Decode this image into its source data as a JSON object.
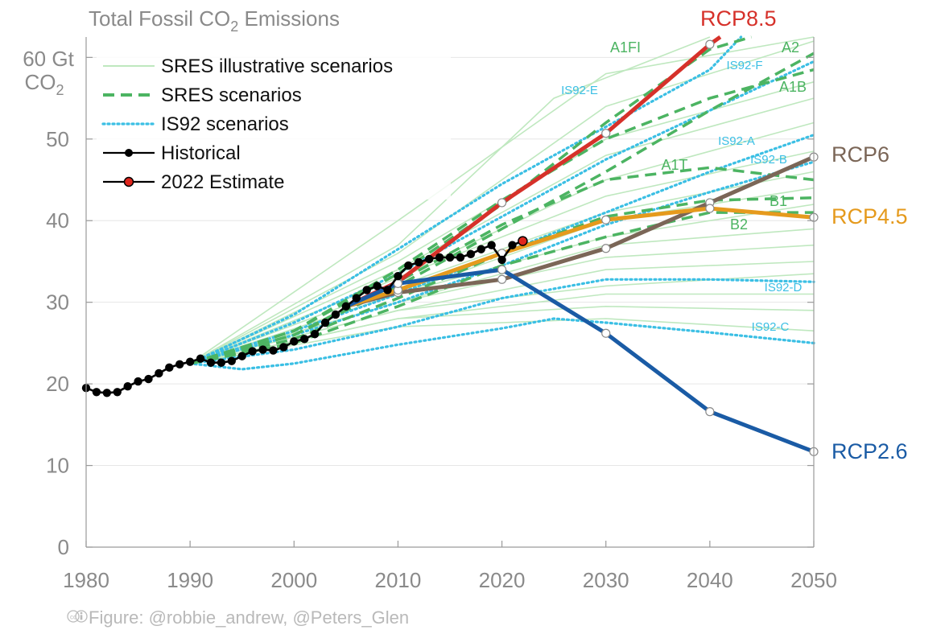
{
  "chart_data": {
    "type": "line",
    "title": "Total Fossil CO",
    "title_sub": "2",
    "title_tail": " Emissions",
    "ylabel_line1": "60 Gt",
    "ylabel_line2": "CO",
    "ylabel_line2_sub": "2",
    "xlim": [
      1980,
      2050
    ],
    "ylim": [
      0,
      62.5
    ],
    "x_ticks": [
      1980,
      1990,
      2000,
      2010,
      2020,
      2030,
      2040,
      2050
    ],
    "y_ticks": [
      0,
      10,
      20,
      30,
      40,
      50
    ],
    "grid": true,
    "legend_position": "top-left",
    "legend": [
      {
        "label": "SRES illustrative scenarios",
        "style": "sres_illus"
      },
      {
        "label": "SRES scenarios",
        "style": "sres"
      },
      {
        "label": "IS92 scenarios",
        "style": "is92"
      },
      {
        "label": "Historical",
        "style": "hist"
      },
      {
        "label": "2022 Estimate",
        "style": "est"
      }
    ],
    "colors": {
      "sres_illus": "#bfe8bf",
      "sres": "#4cb462",
      "is92": "#3bbfe4",
      "hist": "#000000",
      "est": "#e0261d",
      "rcp85": "#d6312a",
      "rcp6": "#7b6657",
      "rcp45": "#e59a1d",
      "rcp26": "#1a5ba5",
      "axis_text": "#8a8a8a"
    },
    "historical": {
      "x": [
        1980,
        1981,
        1982,
        1983,
        1984,
        1985,
        1986,
        1987,
        1988,
        1989,
        1990,
        1991,
        1992,
        1993,
        1994,
        1995,
        1996,
        1997,
        1998,
        1999,
        2000,
        2001,
        2002,
        2003,
        2004,
        2005,
        2006,
        2007,
        2008,
        2009,
        2010,
        2011,
        2012,
        2013,
        2014,
        2015,
        2016,
        2017,
        2018,
        2019,
        2020,
        2021
      ],
      "y": [
        19.5,
        19.0,
        18.9,
        19.0,
        19.7,
        20.3,
        20.6,
        21.3,
        22.0,
        22.4,
        22.7,
        23.1,
        22.6,
        22.6,
        22.8,
        23.4,
        24.0,
        24.2,
        24.1,
        24.5,
        25.2,
        25.5,
        26.1,
        27.5,
        28.5,
        29.5,
        30.5,
        31.5,
        32.0,
        31.5,
        33.2,
        34.5,
        34.9,
        35.3,
        35.5,
        35.5,
        35.5,
        35.9,
        36.5,
        37.0,
        35.2,
        37.0
      ]
    },
    "estimate_2022": {
      "x": 2022,
      "y": 37.5
    },
    "rcp": [
      {
        "name": "RCP8.5",
        "key": "rcp85",
        "x": [
          2005,
          2010,
          2020,
          2030,
          2040,
          2041
        ],
        "y": [
          29.5,
          32.5,
          42.2,
          50.7,
          61.6,
          62.5
        ]
      },
      {
        "name": "RCP6",
        "key": "rcp6",
        "x": [
          2005,
          2010,
          2020,
          2030,
          2040,
          2050
        ],
        "y": [
          29.5,
          31.2,
          32.8,
          36.6,
          42.2,
          47.8
        ]
      },
      {
        "name": "RCP4.5",
        "key": "rcp45",
        "x": [
          2005,
          2010,
          2020,
          2030,
          2040,
          2050
        ],
        "y": [
          29.5,
          31.5,
          36.0,
          40.1,
          41.5,
          40.4
        ]
      },
      {
        "name": "RCP2.6",
        "key": "rcp26",
        "x": [
          2005,
          2010,
          2020,
          2030,
          2040,
          2050
        ],
        "y": [
          29.5,
          32.3,
          34.0,
          26.2,
          16.6,
          11.7
        ]
      }
    ],
    "rcp_points": {
      "rcp85": [
        2010,
        2020,
        2030,
        2040
      ],
      "rcp6": [
        2010,
        2020,
        2030,
        2040,
        2050
      ],
      "rcp45": [
        2010,
        2020,
        2030,
        2040,
        2050
      ],
      "rcp26": [
        2010,
        2020,
        2030,
        2040,
        2050
      ]
    },
    "is92": [
      {
        "name": "IS92-E",
        "x": [
          1990,
          2000,
          2010,
          2020,
          2030,
          2040,
          2043
        ],
        "y": [
          22.5,
          28.5,
          36.5,
          44.5,
          51.5,
          58.5,
          62.5
        ]
      },
      {
        "name": "IS92-F",
        "x": [
          1990,
          2000,
          2010,
          2020,
          2030,
          2040,
          2050
        ],
        "y": [
          22.5,
          27.5,
          33.5,
          40.5,
          47.5,
          53.5,
          59.5
        ]
      },
      {
        "name": "IS92-A",
        "x": [
          1990,
          2000,
          2010,
          2020,
          2030,
          2040,
          2050
        ],
        "y": [
          22.5,
          26.5,
          31.0,
          36.0,
          41.0,
          46.0,
          50.5
        ]
      },
      {
        "name": "IS92-B",
        "x": [
          1990,
          2000,
          2010,
          2020,
          2030,
          2040,
          2050
        ],
        "y": [
          22.5,
          26.0,
          30.0,
          34.5,
          39.5,
          43.5,
          47.2
        ]
      },
      {
        "name": "IS92-D",
        "x": [
          1990,
          2000,
          2010,
          2020,
          2030,
          2040,
          2050
        ],
        "y": [
          22.5,
          24.2,
          27.0,
          30.5,
          32.8,
          32.8,
          32.5
        ]
      },
      {
        "name": "IS92-C",
        "x": [
          1990,
          1995,
          2000,
          2010,
          2020,
          2025,
          2030,
          2040,
          2050
        ],
        "y": [
          22.5,
          21.8,
          22.5,
          24.8,
          26.8,
          28.0,
          27.5,
          26.3,
          25.0
        ]
      }
    ],
    "sres": [
      {
        "name": "A1FI",
        "x": [
          1990,
          2000,
          2010,
          2020,
          2030,
          2040,
          2044
        ],
        "y": [
          22.5,
          26.5,
          33.5,
          42.0,
          52.0,
          61.0,
          62.5
        ]
      },
      {
        "name": "A2",
        "x": [
          1990,
          2000,
          2010,
          2020,
          2030,
          2040,
          2050
        ],
        "y": [
          22.5,
          26.0,
          32.0,
          39.0,
          46.0,
          53.5,
          60.5
        ]
      },
      {
        "name": "A1B",
        "x": [
          1990,
          2000,
          2010,
          2020,
          2030,
          2040,
          2050
        ],
        "y": [
          22.5,
          26.5,
          34.0,
          42.5,
          50.0,
          55.0,
          58.5
        ]
      },
      {
        "name": "A1T",
        "x": [
          1990,
          2000,
          2010,
          2020,
          2030,
          2040,
          2050
        ],
        "y": [
          22.5,
          26.0,
          32.5,
          39.5,
          45.0,
          46.5,
          45.0
        ]
      },
      {
        "name": "B1",
        "x": [
          1990,
          2000,
          2010,
          2020,
          2030,
          2040,
          2050
        ],
        "y": [
          22.5,
          25.5,
          30.5,
          36.0,
          40.5,
          42.5,
          42.8
        ]
      },
      {
        "name": "B2",
        "x": [
          1990,
          2000,
          2010,
          2020,
          2030,
          2040,
          2050
        ],
        "y": [
          22.5,
          25.0,
          29.5,
          34.5,
          38.0,
          41.0,
          41.0
        ]
      }
    ],
    "sres_illustrative": [
      {
        "x": [
          1990,
          2010,
          2030,
          2050
        ],
        "y": [
          22.5,
          40.0,
          58.0,
          62.5
        ]
      },
      {
        "x": [
          1990,
          2010,
          2025,
          2040
        ],
        "y": [
          22.5,
          37.0,
          55.0,
          62.5
        ]
      },
      {
        "x": [
          1990,
          2010,
          2030,
          2050
        ],
        "y": [
          22.5,
          36.0,
          54.0,
          62.0
        ]
      },
      {
        "x": [
          1990,
          2010,
          2030,
          2050
        ],
        "y": [
          22.5,
          35.0,
          50.0,
          57.0
        ]
      },
      {
        "x": [
          1990,
          2010,
          2030,
          2050
        ],
        "y": [
          22.5,
          34.0,
          48.0,
          55.0
        ]
      },
      {
        "x": [
          1990,
          2010,
          2030,
          2050
        ],
        "y": [
          22.5,
          33.0,
          45.0,
          52.0
        ]
      },
      {
        "x": [
          1990,
          2010,
          2030,
          2050
        ],
        "y": [
          22.5,
          33.0,
          43.0,
          48.5
        ]
      },
      {
        "x": [
          1990,
          2010,
          2030,
          2050
        ],
        "y": [
          22.5,
          32.0,
          41.0,
          46.0
        ]
      },
      {
        "x": [
          1990,
          2010,
          2030,
          2050
        ],
        "y": [
          22.5,
          31.0,
          40.0,
          44.0
        ]
      },
      {
        "x": [
          1990,
          2010,
          2030,
          2050
        ],
        "y": [
          22.5,
          31.0,
          38.0,
          42.0
        ]
      },
      {
        "x": [
          1990,
          2010,
          2030,
          2050
        ],
        "y": [
          22.5,
          30.0,
          37.0,
          39.0
        ]
      },
      {
        "x": [
          1990,
          2010,
          2030,
          2050
        ],
        "y": [
          22.5,
          30.0,
          35.5,
          37.0
        ]
      },
      {
        "x": [
          1990,
          2010,
          2030,
          2050
        ],
        "y": [
          22.5,
          29.0,
          34.0,
          35.0
        ]
      },
      {
        "x": [
          1990,
          2010,
          2030,
          2050
        ],
        "y": [
          22.5,
          29.0,
          32.0,
          33.5
        ]
      },
      {
        "x": [
          1990,
          2010,
          2030,
          2050
        ],
        "y": [
          22.5,
          28.0,
          31.0,
          31.0
        ]
      },
      {
        "x": [
          1990,
          2010,
          2030,
          2050
        ],
        "y": [
          22.5,
          28.0,
          29.5,
          29.0
        ]
      },
      {
        "x": [
          1990,
          2010,
          2030,
          2050
        ],
        "y": [
          22.5,
          27.0,
          28.0,
          26.5
        ]
      }
    ]
  },
  "footer": {
    "cc_icon": "cc-by-icon",
    "credit": "Figure: @robbie_andrew, @Peters_Glen"
  }
}
